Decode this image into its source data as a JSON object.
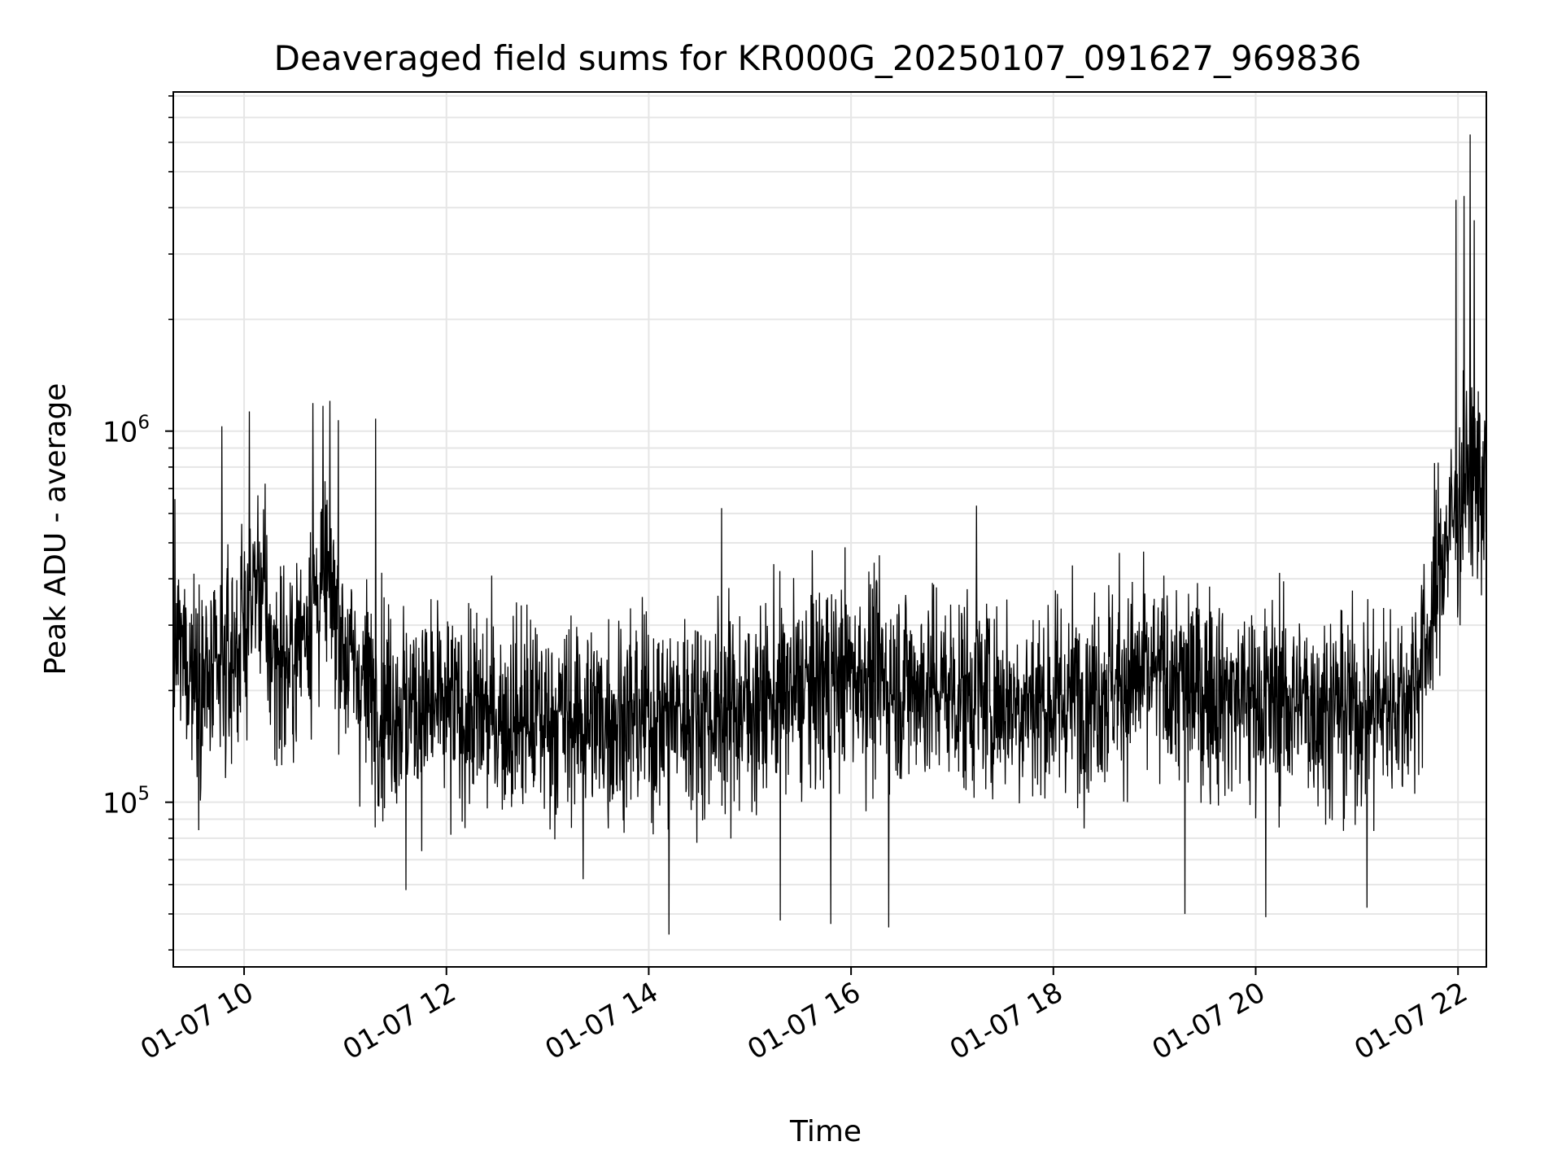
{
  "chart_data": {
    "type": "line",
    "title": "Deaveraged field sums for KR000G_20250107_091627_969836",
    "xlabel": "Time",
    "ylabel": "Peak ADU - average",
    "yscale": "log",
    "grid": true,
    "line_color": "#000000",
    "grid_color": "#e6e6e6",
    "x_unit": "hours",
    "xlim": [
      9.3,
      22.28
    ],
    "ylim": [
      36000,
      8200000
    ],
    "x_ticks": [
      {
        "value": 10,
        "label": "01-07 10"
      },
      {
        "value": 12,
        "label": "01-07 12"
      },
      {
        "value": 14,
        "label": "01-07 14"
      },
      {
        "value": 16,
        "label": "01-07 16"
      },
      {
        "value": 18,
        "label": "01-07 18"
      },
      {
        "value": 20,
        "label": "01-07 20"
      },
      {
        "value": 22,
        "label": "01-07 22"
      }
    ],
    "y_ticks": [
      {
        "value": 100000,
        "base": "10",
        "exp": "5"
      },
      {
        "value": 1000000,
        "base": "10",
        "exp": "6"
      }
    ],
    "y_minor_ticks": [
      40000,
      50000,
      60000,
      70000,
      80000,
      90000,
      200000,
      300000,
      400000,
      500000,
      600000,
      700000,
      800000,
      900000,
      2000000,
      3000000,
      4000000,
      5000000,
      6000000,
      7000000,
      8000000
    ],
    "series": [
      {
        "baseline": [
          [
            9.3,
            270000
          ],
          [
            9.7,
            200000
          ],
          [
            9.95,
            270000
          ],
          [
            10.15,
            420000
          ],
          [
            10.25,
            260000
          ],
          [
            10.45,
            230000
          ],
          [
            10.65,
            340000
          ],
          [
            10.85,
            400000
          ],
          [
            11.0,
            250000
          ],
          [
            11.3,
            190000
          ],
          [
            12.0,
            175000
          ],
          [
            13.0,
            168000
          ],
          [
            14.0,
            170000
          ],
          [
            15.0,
            180000
          ],
          [
            15.5,
            200000
          ],
          [
            16.0,
            225000
          ],
          [
            16.5,
            210000
          ],
          [
            17.0,
            200000
          ],
          [
            17.5,
            190000
          ],
          [
            18.0,
            185000
          ],
          [
            18.5,
            210000
          ],
          [
            19.0,
            215000
          ],
          [
            19.5,
            200000
          ],
          [
            20.0,
            190000
          ],
          [
            20.5,
            185000
          ],
          [
            21.0,
            175000
          ],
          [
            21.5,
            190000
          ],
          [
            21.7,
            270000
          ],
          [
            21.85,
            480000
          ],
          [
            22.0,
            620000
          ],
          [
            22.1,
            750000
          ],
          [
            22.28,
            720000
          ]
        ],
        "spread_decades": 0.22,
        "point_spacing_hours": 0.004,
        "spikes": [
          {
            "x": 9.78,
            "y": 1030000
          },
          {
            "x": 10.05,
            "y": 1130000
          },
          {
            "x": 10.68,
            "y": 1190000
          },
          {
            "x": 10.78,
            "y": 1170000
          },
          {
            "x": 10.93,
            "y": 1070000
          },
          {
            "x": 11.3,
            "y": 1080000
          },
          {
            "x": 14.72,
            "y": 620000
          },
          {
            "x": 17.24,
            "y": 630000
          },
          {
            "x": 21.98,
            "y": 4200000
          },
          {
            "x": 22.06,
            "y": 4300000
          },
          {
            "x": 22.12,
            "y": 6300000
          },
          {
            "x": 22.16,
            "y": 3700000
          }
        ],
        "dips": [
          {
            "x": 14.2,
            "y": 44000
          },
          {
            "x": 15.3,
            "y": 48000
          },
          {
            "x": 16.37,
            "y": 46000
          },
          {
            "x": 19.3,
            "y": 50000
          },
          {
            "x": 20.1,
            "y": 49000
          },
          {
            "x": 21.1,
            "y": 52000
          },
          {
            "x": 11.6,
            "y": 58000
          },
          {
            "x": 13.35,
            "y": 62000
          },
          {
            "x": 15.8,
            "y": 47000
          }
        ]
      }
    ]
  }
}
